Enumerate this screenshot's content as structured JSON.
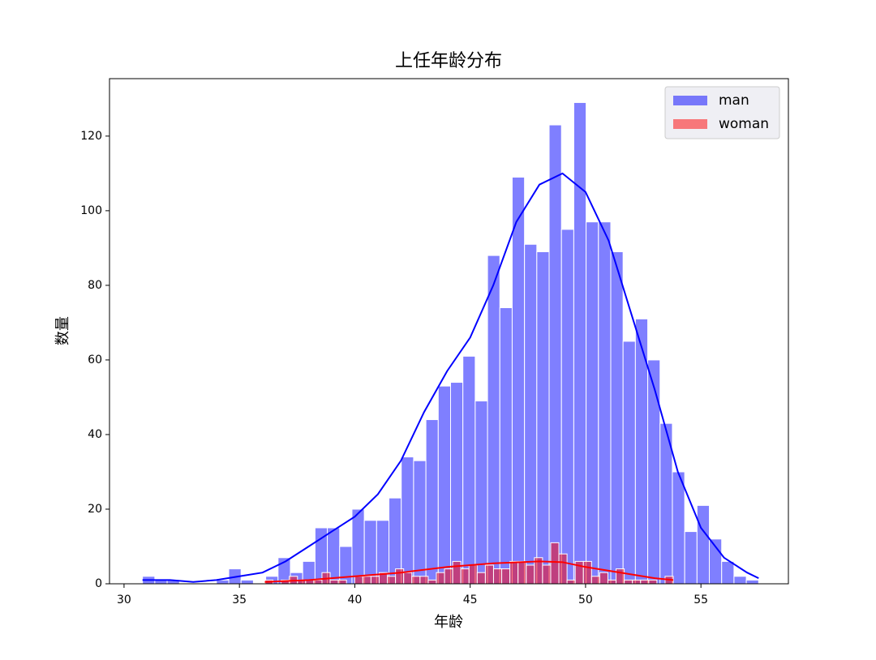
{
  "chart_data": {
    "type": "histogram",
    "title": "上任年龄分布",
    "x_label": "年龄",
    "y_label": "数量",
    "xlim": [
      29.37,
      58.79
    ],
    "ylim": [
      0,
      135.4
    ],
    "xticks": [
      30,
      35,
      40,
      45,
      50,
      55
    ],
    "yticks": [
      0,
      20,
      40,
      60,
      80,
      100,
      120
    ],
    "legend": "upper right",
    "series": [
      {
        "name": "man",
        "color": "#0000ff",
        "line_color": "#0000ff",
        "bins": [
          30.8,
          31.334,
          31.868,
          32.402,
          32.936,
          33.47,
          34.004,
          34.538,
          35.072,
          35.606,
          36.14,
          36.674,
          37.208,
          37.742,
          38.276,
          38.81,
          39.344,
          39.878,
          40.412,
          40.946,
          41.48,
          42.014,
          42.548,
          43.082,
          43.616,
          44.15,
          44.684,
          45.218,
          45.752,
          46.286,
          46.82,
          47.354,
          47.888,
          48.422,
          48.956,
          49.49,
          50.024,
          50.558,
          51.092,
          51.626,
          52.16,
          52.694,
          53.228,
          53.762,
          54.296,
          54.83,
          55.364,
          55.898,
          56.432,
          56.966,
          57.5
        ],
        "values": [
          2,
          1,
          1,
          0,
          0,
          0,
          1,
          4,
          1,
          0,
          2,
          7,
          3,
          6,
          15,
          15,
          10,
          20,
          17,
          17,
          23,
          34,
          33,
          44,
          53,
          54,
          61,
          49,
          88,
          74,
          109,
          91,
          89,
          123,
          95,
          129,
          97,
          97,
          89,
          65,
          71,
          60,
          43,
          30,
          14,
          21,
          12,
          6,
          2,
          1
        ],
        "kde_x": [
          30.8,
          32,
          33,
          34,
          35,
          36,
          37,
          38,
          39,
          40,
          41,
          42,
          43,
          44,
          45,
          46,
          47,
          48,
          49,
          50,
          51,
          52,
          53,
          54,
          55,
          56,
          57,
          57.5
        ],
        "kde_values": [
          1,
          1,
          0.5,
          1,
          2,
          3,
          6,
          10,
          14,
          18,
          24,
          33,
          46,
          57,
          66,
          80,
          97,
          107,
          110,
          105,
          92,
          72,
          52,
          30,
          15,
          7,
          3,
          1.5
        ]
      },
      {
        "name": "woman",
        "color": "#ff0000",
        "line_color": "#ff0000",
        "bins": [
          36.1,
          36.454,
          36.808,
          37.162,
          37.516,
          37.87,
          38.224,
          38.578,
          38.932,
          39.286,
          39.64,
          39.994,
          40.348,
          40.702,
          41.056,
          41.41,
          41.764,
          42.118,
          42.472,
          42.826,
          43.18,
          43.534,
          43.888,
          44.242,
          44.596,
          44.95,
          45.304,
          45.658,
          46.012,
          46.366,
          46.72,
          47.074,
          47.428,
          47.782,
          48.136,
          48.49,
          48.844,
          49.198,
          49.552,
          49.906,
          50.26,
          50.614,
          50.968,
          51.322,
          51.676,
          52.03,
          52.384,
          52.738,
          53.092,
          53.446,
          53.8
        ],
        "values": [
          1,
          0,
          1,
          2,
          1,
          1,
          1,
          3,
          1,
          1,
          0,
          2,
          2,
          2,
          3,
          2,
          4,
          3,
          2,
          2,
          1,
          3,
          4,
          6,
          4,
          5,
          3,
          5,
          4,
          4,
          6,
          6,
          5,
          7,
          5,
          11,
          8,
          1,
          6,
          6,
          2,
          3,
          1,
          4,
          1,
          1,
          1,
          1,
          0,
          2
        ],
        "kde_x": [
          36.1,
          38,
          40,
          42,
          44,
          46,
          48,
          49,
          50,
          52,
          53,
          53.8
        ],
        "kde_values": [
          0.5,
          1,
          2,
          3,
          4.5,
          5.5,
          6,
          5.8,
          4.5,
          2.5,
          1.5,
          1
        ]
      }
    ]
  }
}
